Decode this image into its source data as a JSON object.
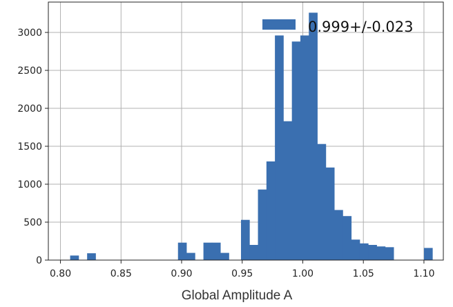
{
  "chart_data": {
    "type": "bar",
    "title": "",
    "xlabel": "Global Amplitude A",
    "ylabel": "",
    "xlim": [
      0.79,
      1.116
    ],
    "ylim": [
      0,
      3400
    ],
    "x_ticks": [
      0.8,
      0.85,
      0.9,
      0.95,
      1.0,
      1.05,
      1.1
    ],
    "x_tick_labels": [
      "0.80",
      "0.85",
      "0.90",
      "0.95",
      "1.00",
      "1.05",
      "1.10"
    ],
    "y_ticks": [
      0,
      500,
      1000,
      1500,
      2000,
      2500,
      3000
    ],
    "y_tick_labels": [
      "0",
      "500",
      "1000",
      "1500",
      "2000",
      "2500",
      "3000"
    ],
    "grid": true,
    "legend_position": "top-right",
    "bar_color": "#3a6fb0",
    "series": [
      {
        "name": "0.999+/-0.023",
        "bins": [
          {
            "x0": 0.808,
            "x1": 0.815,
            "value": 60
          },
          {
            "x0": 0.822,
            "x1": 0.829,
            "value": 90
          },
          {
            "x0": 0.897,
            "x1": 0.904,
            "value": 230
          },
          {
            "x0": 0.904,
            "x1": 0.911,
            "value": 95
          },
          {
            "x0": 0.918,
            "x1": 0.925,
            "value": 230
          },
          {
            "x0": 0.925,
            "x1": 0.932,
            "value": 230
          },
          {
            "x0": 0.932,
            "x1": 0.939,
            "value": 95
          },
          {
            "x0": 0.949,
            "x1": 0.956,
            "value": 530
          },
          {
            "x0": 0.956,
            "x1": 0.963,
            "value": 200
          },
          {
            "x0": 0.963,
            "x1": 0.97,
            "value": 930
          },
          {
            "x0": 0.97,
            "x1": 0.977,
            "value": 1300
          },
          {
            "x0": 0.977,
            "x1": 0.984,
            "value": 2960
          },
          {
            "x0": 0.984,
            "x1": 0.991,
            "value": 1830
          },
          {
            "x0": 0.991,
            "x1": 0.998,
            "value": 2880
          },
          {
            "x0": 0.998,
            "x1": 1.005,
            "value": 2960
          },
          {
            "x0": 1.005,
            "x1": 1.012,
            "value": 3260
          },
          {
            "x0": 1.012,
            "x1": 1.019,
            "value": 1530
          },
          {
            "x0": 1.019,
            "x1": 1.026,
            "value": 1220
          },
          {
            "x0": 1.026,
            "x1": 1.033,
            "value": 660
          },
          {
            "x0": 1.033,
            "x1": 1.04,
            "value": 580
          },
          {
            "x0": 1.04,
            "x1": 1.047,
            "value": 270
          },
          {
            "x0": 1.047,
            "x1": 1.054,
            "value": 220
          },
          {
            "x0": 1.054,
            "x1": 1.061,
            "value": 200
          },
          {
            "x0": 1.061,
            "x1": 1.068,
            "value": 180
          },
          {
            "x0": 1.068,
            "x1": 1.075,
            "value": 170
          },
          {
            "x0": 1.1,
            "x1": 1.107,
            "value": 160
          }
        ]
      }
    ]
  }
}
